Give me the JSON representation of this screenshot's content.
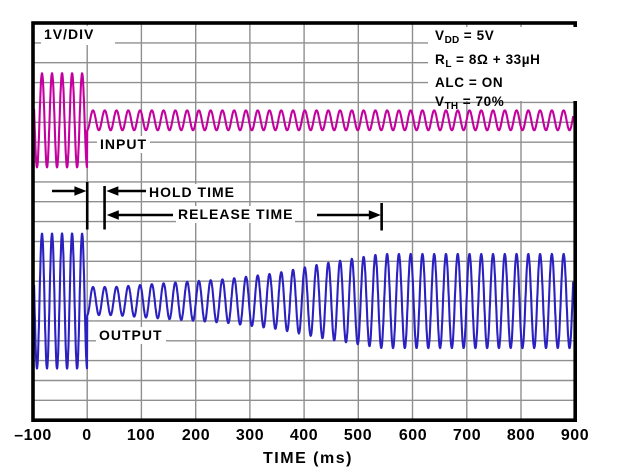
{
  "labels": {
    "scale": "1V/DIV",
    "input": "INPUT",
    "output": "OUTPUT",
    "hold": "HOLD TIME",
    "release": "RELEASE TIME",
    "xlabel": "TIME (ms)"
  },
  "conditions": [
    {
      "pre": "V",
      "sub": "DD",
      "post": " = 5V"
    },
    {
      "pre": "R",
      "sub": "L",
      "post": " = 8Ω + 33µH"
    },
    {
      "pre": "ALC",
      "sub": "",
      "post": " = ON"
    },
    {
      "pre": "V",
      "sub": "TH",
      "post": " = 70%"
    }
  ],
  "chart_data": {
    "type": "line",
    "title": "ALC hold and release time waveforms",
    "xlabel": "TIME (ms)",
    "ylabel": "1V/DIV",
    "xlim": [
      -100,
      900
    ],
    "x_ticks": [
      -100,
      0,
      100,
      200,
      300,
      400,
      500,
      600,
      700,
      800,
      900
    ],
    "x_tick_labels": [
      "–100",
      "0",
      "100",
      "200",
      "300",
      "400",
      "500",
      "600",
      "700",
      "800",
      "900"
    ],
    "grid": {
      "on": true,
      "cols": 10,
      "rows": 20
    },
    "legend_position": "in-plot labels",
    "conditions_text": [
      "VDD = 5V",
      "RL = 8Ω + 33µH",
      "ALC = ON",
      "VTH = 70%"
    ],
    "series": [
      {
        "name": "INPUT",
        "color": "#C4009E",
        "center_div": 4.9,
        "period_ms_before_0": 18.5,
        "period_ms_after_0": 21.7,
        "amplitude_envelope_V": [
          [
            -100,
            2.37
          ],
          [
            -0.01,
            2.37
          ],
          [
            0,
            0.5
          ],
          [
            900,
            0.5
          ]
        ]
      },
      {
        "name": "OUTPUT",
        "color": "#2B21C0",
        "center_div": 14.0,
        "period_ms_before_0": 18.5,
        "period_ms_after_0": 21.7,
        "amplitude_envelope_V": [
          [
            -100,
            3.4
          ],
          [
            -0.01,
            3.4
          ],
          [
            0,
            0.71
          ],
          [
            50,
            0.71
          ],
          [
            150,
            0.91
          ],
          [
            260,
            1.11
          ],
          [
            350,
            1.41
          ],
          [
            450,
            1.96
          ],
          [
            543,
            2.37
          ],
          [
            900,
            2.37
          ]
        ]
      }
    ],
    "annotations": [
      {
        "label": "HOLD TIME",
        "start_ms": 0,
        "end_ms": 32
      },
      {
        "label": "RELEASE TIME",
        "start_ms": 32,
        "end_ms": 543
      }
    ]
  }
}
